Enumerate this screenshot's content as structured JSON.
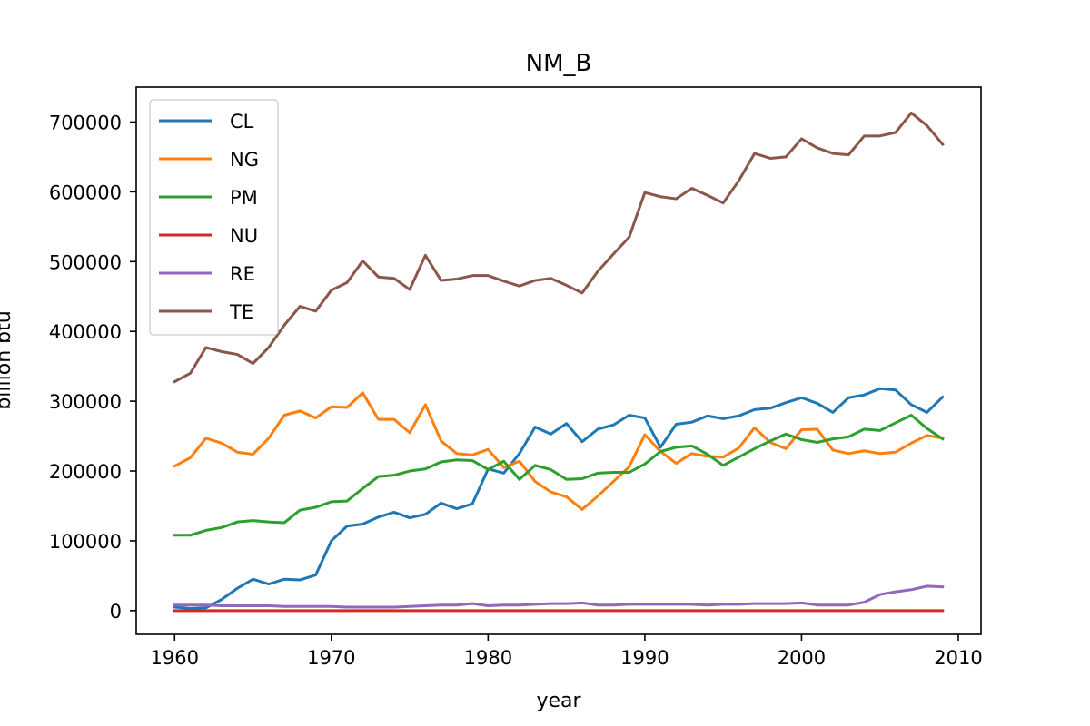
{
  "chart_data": {
    "type": "line",
    "title": "NM_B",
    "xlabel": "year",
    "ylabel": "billion btu",
    "xlim": [
      1957.55,
      2011.45
    ],
    "ylim": [
      -34000,
      750000
    ],
    "x_ticks": [
      1960,
      1970,
      1980,
      1990,
      2000,
      2010
    ],
    "y_ticks": [
      0,
      100000,
      200000,
      300000,
      400000,
      500000,
      600000,
      700000
    ],
    "grid": false,
    "legend_position": "upper left",
    "x": [
      1960,
      1961,
      1962,
      1963,
      1964,
      1965,
      1966,
      1967,
      1968,
      1969,
      1970,
      1971,
      1972,
      1973,
      1974,
      1975,
      1976,
      1977,
      1978,
      1979,
      1980,
      1981,
      1982,
      1983,
      1984,
      1985,
      1986,
      1987,
      1988,
      1989,
      1990,
      1991,
      1992,
      1993,
      1994,
      1995,
      1996,
      1997,
      1998,
      1999,
      2000,
      2001,
      2002,
      2003,
      2004,
      2005,
      2006,
      2007,
      2008,
      2009
    ],
    "series": [
      {
        "name": "CL",
        "color": "#1f77b4",
        "values": [
          5000,
          3000,
          4000,
          16000,
          32000,
          45000,
          38000,
          45000,
          44000,
          51000,
          100000,
          121000,
          124000,
          134000,
          141000,
          133000,
          138000,
          154000,
          146000,
          153000,
          203000,
          197000,
          225000,
          263000,
          253000,
          268000,
          242000,
          260000,
          266000,
          280000,
          276000,
          234000,
          267000,
          270000,
          279000,
          275000,
          279000,
          288000,
          290000,
          298000,
          305000,
          297000,
          284000,
          305000,
          309000,
          318000,
          316000,
          295000,
          284000,
          306000
        ]
      },
      {
        "name": "NG",
        "color": "#ff7f0e",
        "values": [
          207000,
          219000,
          247000,
          240000,
          227000,
          224000,
          247000,
          280000,
          286000,
          276000,
          292000,
          291000,
          312000,
          274000,
          274000,
          255000,
          295000,
          243000,
          225000,
          223000,
          231000,
          205000,
          214000,
          185000,
          170000,
          163000,
          145000,
          164000,
          185000,
          206000,
          252000,
          228000,
          211000,
          225000,
          221000,
          220000,
          233000,
          262000,
          241000,
          232000,
          259000,
          260000,
          230000,
          225000,
          229000,
          225000,
          227000,
          240000,
          251000,
          247000
        ]
      },
      {
        "name": "PM",
        "color": "#2ca02c",
        "values": [
          108000,
          108000,
          115000,
          119000,
          127000,
          129000,
          127000,
          126000,
          144000,
          148000,
          156000,
          157000,
          175000,
          192000,
          194000,
          200000,
          203000,
          213000,
          216000,
          215000,
          202000,
          214000,
          188000,
          208000,
          202000,
          188000,
          189000,
          197000,
          198000,
          198000,
          210000,
          228000,
          234000,
          236000,
          224000,
          208000,
          220000,
          232000,
          243000,
          253000,
          245000,
          241000,
          246000,
          249000,
          260000,
          258000,
          269000,
          280000,
          261000,
          246000
        ]
      },
      {
        "name": "NU",
        "color": "#d62728",
        "values": [
          0,
          0,
          0,
          0,
          0,
          0,
          0,
          0,
          0,
          0,
          0,
          0,
          0,
          0,
          0,
          0,
          0,
          0,
          0,
          0,
          0,
          0,
          0,
          0,
          0,
          0,
          0,
          0,
          0,
          0,
          0,
          0,
          0,
          0,
          0,
          0,
          0,
          0,
          0,
          0,
          0,
          0,
          0,
          0,
          0,
          0,
          0,
          0,
          0,
          0
        ]
      },
      {
        "name": "RE",
        "color": "#9467bd",
        "values": [
          8000,
          8000,
          8000,
          7000,
          7000,
          7000,
          7000,
          6000,
          6000,
          6000,
          6000,
          5000,
          5000,
          5000,
          5000,
          6000,
          7000,
          8000,
          8000,
          10000,
          7000,
          8000,
          8000,
          9000,
          10000,
          10000,
          11000,
          8000,
          8000,
          9000,
          9000,
          9000,
          9000,
          9000,
          8000,
          9000,
          9000,
          10000,
          10000,
          10000,
          11000,
          8000,
          8000,
          8000,
          12000,
          23000,
          27000,
          30000,
          35000,
          34000
        ]
      },
      {
        "name": "TE",
        "color": "#8c564b",
        "values": [
          328000,
          340000,
          377000,
          371000,
          367000,
          354000,
          377000,
          409000,
          436000,
          429000,
          459000,
          470000,
          501000,
          478000,
          476000,
          460000,
          509000,
          473000,
          475000,
          480000,
          480000,
          472000,
          465000,
          473000,
          476000,
          466000,
          455000,
          486000,
          511000,
          535000,
          599000,
          593000,
          590000,
          605000,
          595000,
          584000,
          616000,
          655000,
          648000,
          650000,
          676000,
          663000,
          655000,
          653000,
          680000,
          680000,
          685000,
          713000,
          695000,
          668000
        ]
      }
    ]
  }
}
